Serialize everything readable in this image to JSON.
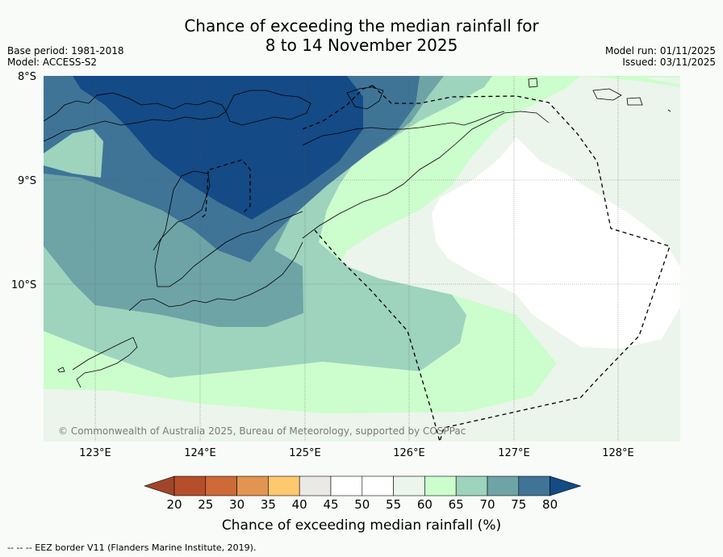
{
  "title_line1": "Chance of exceeding the median rainfall for",
  "title_line2": "8 to 14 November 2025",
  "meta_left": {
    "base_period": "Base period: 1981-2018",
    "model": "Model: ACCESS-S2"
  },
  "meta_right": {
    "model_run": "Model run: 01/11/2025",
    "issued": "Issued: 03/11/2025"
  },
  "lat_labels": [
    "8°S",
    "9°S",
    "10°S"
  ],
  "lon_labels": [
    "123°E",
    "124°E",
    "125°E",
    "126°E",
    "127°E",
    "128°E"
  ],
  "copyright": "© Commonwealth of Australia 2025, Bureau of Meteorology, supported by COSPPac",
  "colorbar": {
    "ticks": [
      "20",
      "25",
      "30",
      "35",
      "40",
      "45",
      "50",
      "55",
      "60",
      "65",
      "70",
      "75",
      "80"
    ],
    "colors": [
      "#a0452a",
      "#b54e2b",
      "#cd6a37",
      "#e19550",
      "#fdc86e",
      "#ebe9e6",
      "#ffffff",
      "#ffffff",
      "#ebf5eb",
      "#ccfdcc",
      "#9ed3be",
      "#6ea4a6",
      "#3f7497",
      "#144a85"
    ],
    "label": "Chance of exceeding median rainfall (%)"
  },
  "eez_note": "--  --  -- EEZ border V11 (Flanders Marine Institute, 2019)."
}
